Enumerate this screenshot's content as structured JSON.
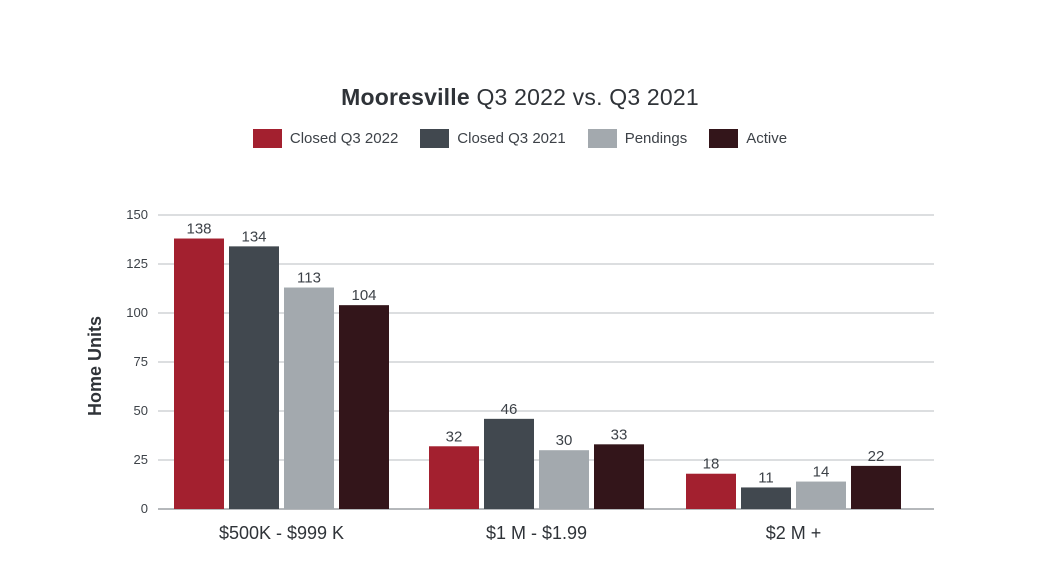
{
  "title": {
    "bold": "Mooresville",
    "rest": "Q3 2022 vs. Q3 2021"
  },
  "chart_data": {
    "type": "bar",
    "title": "Mooresville Q3 2022 vs. Q3 2021",
    "xlabel": "",
    "ylabel": "Home Units",
    "ylim": [
      0,
      150
    ],
    "yticks": [
      0,
      25,
      50,
      75,
      100,
      125,
      150
    ],
    "grid": true,
    "legend_position": "top-center",
    "categories": [
      "$500K - $999 K",
      "$1 M - $1.99",
      "$2 M +"
    ],
    "series": [
      {
        "name": "Closed Q3 2022",
        "color": "#a3202f",
        "values": [
          138,
          32,
          18
        ]
      },
      {
        "name": "Closed Q3 2021",
        "color": "#41484f",
        "values": [
          134,
          46,
          11
        ]
      },
      {
        "name": "Pendings",
        "color": "#a3a9ae",
        "values": [
          113,
          30,
          14
        ]
      },
      {
        "name": "Active",
        "color": "#33151a",
        "values": [
          104,
          33,
          22
        ]
      }
    ]
  }
}
